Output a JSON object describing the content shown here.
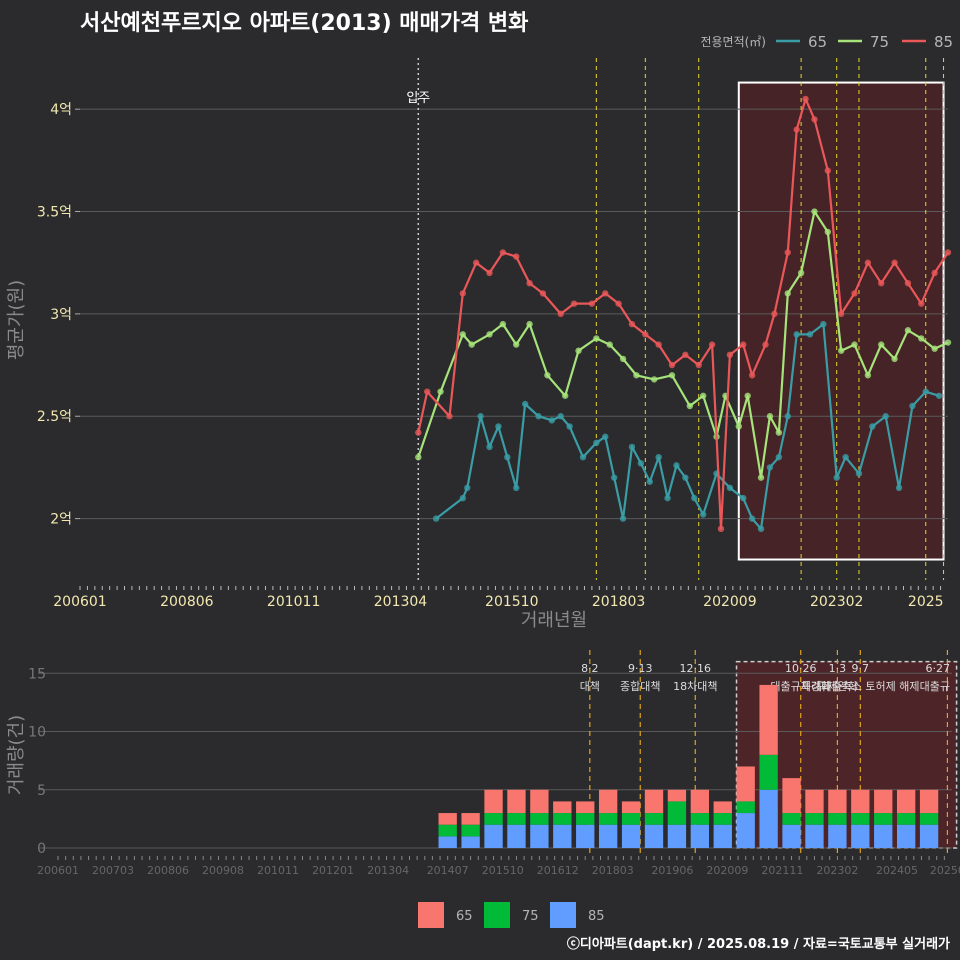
{
  "title": "서산예천푸르지오 아파트(2013) 매매가격 변화",
  "credit": "ⓒ디아파트(dapt.kr) / 2025.08.19 / 자료=국토교통부 실거래가",
  "colors": {
    "background": "#2b2b2d",
    "grid": "#5a5a5a",
    "tick_text": "#f2e8b0",
    "axis_title": "#8a8a8a",
    "vline": "#e6d82b",
    "bar_vline": "#e0a31c",
    "highlight_box": "#4a2226",
    "area65": "#3a9da6",
    "area75": "#a6e37a",
    "area85": "#ea5759",
    "bar65": "#f8766d",
    "bar75": "#00ba38",
    "bar85": "#619cff"
  },
  "chart_data": [
    {
      "type": "line",
      "title": "서산예천푸르지오 아파트(2013) 매매가격 변화",
      "xlabel": "거래년월",
      "ylabel": "평균가(원)",
      "x_ticks": [
        "200601",
        "200806",
        "201011",
        "201304",
        "201510",
        "201803",
        "202009",
        "202302",
        "2025"
      ],
      "y_ticks": [
        "2억",
        "2.5억",
        "3억",
        "3.5억",
        "4억"
      ],
      "ylim": [
        1.7,
        4.25
      ],
      "legend_title": "전용면적(㎡)",
      "legend_position": "top-right",
      "grid": true,
      "annotation": "입주",
      "series": [
        {
          "name": "65",
          "color": "#3a9da6",
          "values": [
            [
              2014.0,
              2.0
            ],
            [
              2014.6,
              2.1
            ],
            [
              2014.7,
              2.15
            ],
            [
              2015.0,
              2.5
            ],
            [
              2015.2,
              2.35
            ],
            [
              2015.4,
              2.45
            ],
            [
              2015.6,
              2.3
            ],
            [
              2015.8,
              2.15
            ],
            [
              2016.0,
              2.56
            ],
            [
              2016.3,
              2.5
            ],
            [
              2016.6,
              2.48
            ],
            [
              2016.8,
              2.5
            ],
            [
              2017.0,
              2.45
            ],
            [
              2017.3,
              2.3
            ],
            [
              2017.6,
              2.37
            ],
            [
              2017.8,
              2.4
            ],
            [
              2018.0,
              2.2
            ],
            [
              2018.2,
              2.0
            ],
            [
              2018.4,
              2.35
            ],
            [
              2018.6,
              2.27
            ],
            [
              2018.8,
              2.18
            ],
            [
              2019.0,
              2.3
            ],
            [
              2019.2,
              2.1
            ],
            [
              2019.4,
              2.26
            ],
            [
              2019.6,
              2.2
            ],
            [
              2019.8,
              2.1
            ],
            [
              2020.0,
              2.02
            ],
            [
              2020.3,
              2.22
            ],
            [
              2020.6,
              2.15
            ],
            [
              2020.9,
              2.1
            ],
            [
              2021.1,
              2.0
            ],
            [
              2021.3,
              1.95
            ],
            [
              2021.5,
              2.25
            ],
            [
              2021.7,
              2.3
            ],
            [
              2021.9,
              2.5
            ],
            [
              2022.1,
              2.9
            ],
            [
              2022.4,
              2.9
            ],
            [
              2022.7,
              2.95
            ],
            [
              2023.0,
              2.2
            ],
            [
              2023.2,
              2.3
            ],
            [
              2023.5,
              2.22
            ],
            [
              2023.8,
              2.45
            ],
            [
              2024.1,
              2.5
            ],
            [
              2024.4,
              2.15
            ],
            [
              2024.7,
              2.55
            ],
            [
              2025.0,
              2.62
            ],
            [
              2025.3,
              2.6
            ]
          ]
        },
        {
          "name": "75",
          "color": "#a6e37a",
          "values": [
            [
              2013.6,
              2.3
            ],
            [
              2014.1,
              2.62
            ],
            [
              2014.6,
              2.9
            ],
            [
              2014.8,
              2.85
            ],
            [
              2015.2,
              2.9
            ],
            [
              2015.5,
              2.95
            ],
            [
              2015.8,
              2.85
            ],
            [
              2016.1,
              2.95
            ],
            [
              2016.5,
              2.7
            ],
            [
              2016.9,
              2.6
            ],
            [
              2017.2,
              2.82
            ],
            [
              2017.6,
              2.88
            ],
            [
              2017.9,
              2.85
            ],
            [
              2018.2,
              2.78
            ],
            [
              2018.5,
              2.7
            ],
            [
              2018.9,
              2.68
            ],
            [
              2019.3,
              2.7
            ],
            [
              2019.7,
              2.55
            ],
            [
              2020.0,
              2.6
            ],
            [
              2020.3,
              2.4
            ],
            [
              2020.5,
              2.6
            ],
            [
              2020.8,
              2.45
            ],
            [
              2021.0,
              2.6
            ],
            [
              2021.3,
              2.2
            ],
            [
              2021.5,
              2.5
            ],
            [
              2021.7,
              2.42
            ],
            [
              2021.9,
              3.1
            ],
            [
              2022.2,
              3.2
            ],
            [
              2022.5,
              3.5
            ],
            [
              2022.8,
              3.4
            ],
            [
              2023.1,
              2.82
            ],
            [
              2023.4,
              2.85
            ],
            [
              2023.7,
              2.7
            ],
            [
              2024.0,
              2.85
            ],
            [
              2024.3,
              2.78
            ],
            [
              2024.6,
              2.92
            ],
            [
              2024.9,
              2.88
            ],
            [
              2025.2,
              2.83
            ],
            [
              2025.5,
              2.86
            ]
          ]
        },
        {
          "name": "85",
          "color": "#ea5759",
          "values": [
            [
              2013.6,
              2.42
            ],
            [
              2013.8,
              2.62
            ],
            [
              2014.3,
              2.5
            ],
            [
              2014.6,
              3.1
            ],
            [
              2014.9,
              3.25
            ],
            [
              2015.2,
              3.2
            ],
            [
              2015.5,
              3.3
            ],
            [
              2015.8,
              3.28
            ],
            [
              2016.1,
              3.15
            ],
            [
              2016.4,
              3.1
            ],
            [
              2016.8,
              3.0
            ],
            [
              2017.1,
              3.05
            ],
            [
              2017.5,
              3.05
            ],
            [
              2017.8,
              3.1
            ],
            [
              2018.1,
              3.05
            ],
            [
              2018.4,
              2.95
            ],
            [
              2018.7,
              2.9
            ],
            [
              2019.0,
              2.85
            ],
            [
              2019.3,
              2.75
            ],
            [
              2019.6,
              2.8
            ],
            [
              2019.9,
              2.75
            ],
            [
              2020.2,
              2.85
            ],
            [
              2020.4,
              1.95
            ],
            [
              2020.6,
              2.8
            ],
            [
              2020.9,
              2.85
            ],
            [
              2021.1,
              2.7
            ],
            [
              2021.4,
              2.85
            ],
            [
              2021.6,
              3.0
            ],
            [
              2021.9,
              3.3
            ],
            [
              2022.1,
              3.9
            ],
            [
              2022.3,
              4.05
            ],
            [
              2022.5,
              3.95
            ],
            [
              2022.8,
              3.7
            ],
            [
              2023.1,
              3.0
            ],
            [
              2023.4,
              3.1
            ],
            [
              2023.7,
              3.25
            ],
            [
              2024.0,
              3.15
            ],
            [
              2024.3,
              3.25
            ],
            [
              2024.6,
              3.15
            ],
            [
              2024.9,
              3.05
            ],
            [
              2025.2,
              3.2
            ],
            [
              2025.5,
              3.3
            ]
          ]
        }
      ],
      "policy_dates": [
        2017.6,
        2018.7,
        2019.9,
        2022.2,
        2023.0,
        2023.5,
        2025.0,
        2025.4
      ],
      "highlight_range": [
        2020.8,
        2025.4,
        1.8,
        4.13
      ]
    },
    {
      "type": "bar",
      "xlabel": "",
      "ylabel": "거래량(건)",
      "x_ticks": [
        "200601",
        "200703",
        "200806",
        "200908",
        "201011",
        "201201",
        "201304",
        "201407",
        "201510",
        "201612",
        "201803",
        "201906",
        "202009",
        "202111",
        "202302",
        "202405",
        "20250"
      ],
      "y_ticks": [
        "0",
        "5",
        "10",
        "15"
      ],
      "ylim": [
        0,
        17
      ],
      "legend": [
        "65",
        "75",
        "85"
      ],
      "legend_position": "bottom",
      "grid": true,
      "highlight_range": [
        2020.8,
        2025.6,
        0,
        16
      ],
      "events": [
        {
          "x": 2017.6,
          "date": "8·2",
          "text": "대책"
        },
        {
          "x": 2018.7,
          "date": "9·13",
          "text": "종합대책"
        },
        {
          "x": 2019.9,
          "date": "12·16",
          "text": "18차대책"
        },
        {
          "x": 2022.2,
          "date": "10·26",
          "text": "대출규제강화"
        },
        {
          "x": 2023.0,
          "date": "1·3",
          "text": "규제완화"
        },
        {
          "x": 2023.5,
          "date": "9·7",
          "text": "특례대출축소 토허제 해제"
        },
        {
          "x": 2025.4,
          "date": "6·27",
          "text": "대출규"
        }
      ],
      "series": [
        {
          "name": "65",
          "values": [
            [
              2014.5,
              1
            ],
            [
              2015.0,
              1
            ],
            [
              2015.5,
              2
            ],
            [
              2016.0,
              2
            ],
            [
              2016.5,
              2
            ],
            [
              2017.0,
              1
            ],
            [
              2017.5,
              1
            ],
            [
              2018.0,
              2
            ],
            [
              2018.5,
              1
            ],
            [
              2019.0,
              2
            ],
            [
              2019.5,
              1
            ],
            [
              2020.0,
              2
            ],
            [
              2020.5,
              1
            ],
            [
              2021.0,
              3
            ],
            [
              2021.5,
              6
            ],
            [
              2022.0,
              3
            ],
            [
              2022.5,
              2
            ],
            [
              2023.0,
              2
            ],
            [
              2023.5,
              2
            ],
            [
              2024.0,
              2
            ],
            [
              2024.5,
              2
            ],
            [
              2025.0,
              2
            ]
          ]
        },
        {
          "name": "75",
          "values": [
            [
              2014.5,
              1
            ],
            [
              2015.0,
              1
            ],
            [
              2015.5,
              1
            ],
            [
              2016.0,
              1
            ],
            [
              2016.5,
              1
            ],
            [
              2017.0,
              1
            ],
            [
              2017.5,
              1
            ],
            [
              2018.0,
              1
            ],
            [
              2018.5,
              1
            ],
            [
              2019.0,
              1
            ],
            [
              2019.5,
              2
            ],
            [
              2020.0,
              1
            ],
            [
              2020.5,
              1
            ],
            [
              2021.0,
              1
            ],
            [
              2021.5,
              3
            ],
            [
              2022.0,
              1
            ],
            [
              2022.5,
              1
            ],
            [
              2023.0,
              1
            ],
            [
              2023.5,
              1
            ],
            [
              2024.0,
              1
            ],
            [
              2024.5,
              1
            ],
            [
              2025.0,
              1
            ]
          ]
        },
        {
          "name": "85",
          "values": [
            [
              2014.5,
              1
            ],
            [
              2015.0,
              1
            ],
            [
              2015.5,
              2
            ],
            [
              2016.0,
              2
            ],
            [
              2016.5,
              2
            ],
            [
              2017.0,
              2
            ],
            [
              2017.5,
              2
            ],
            [
              2018.0,
              2
            ],
            [
              2018.5,
              2
            ],
            [
              2019.0,
              2
            ],
            [
              2019.5,
              2
            ],
            [
              2020.0,
              2
            ],
            [
              2020.5,
              2
            ],
            [
              2021.0,
              3
            ],
            [
              2021.5,
              5
            ],
            [
              2022.0,
              2
            ],
            [
              2022.5,
              2
            ],
            [
              2023.0,
              2
            ],
            [
              2023.5,
              2
            ],
            [
              2024.0,
              2
            ],
            [
              2024.5,
              2
            ],
            [
              2025.0,
              2
            ]
          ]
        }
      ]
    }
  ]
}
